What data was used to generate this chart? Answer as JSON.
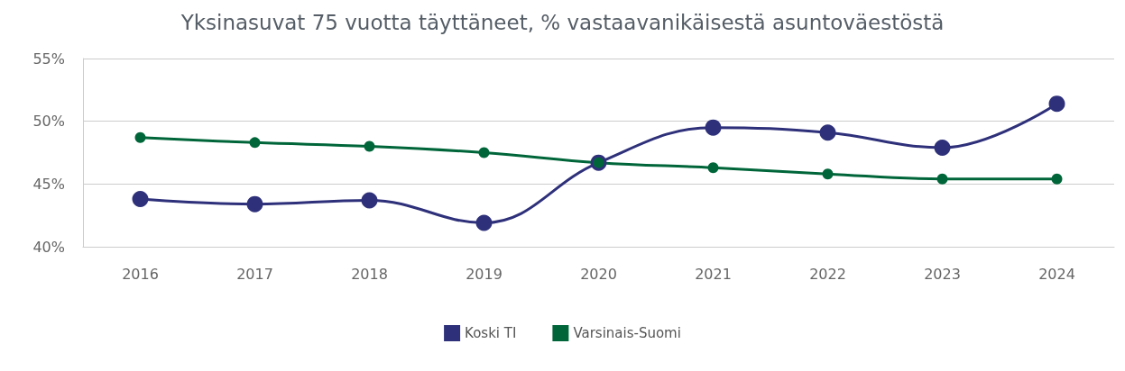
{
  "chart_data": {
    "type": "line",
    "title": "Yksinasuvat 75 vuotta täyttäneet, % vastaavanikäisestä asuntoväestöstä",
    "categories": [
      "2016",
      "2017",
      "2018",
      "2019",
      "2020",
      "2021",
      "2022",
      "2023",
      "2024"
    ],
    "series": [
      {
        "name": "Koski TI",
        "color": "#2e307a",
        "values": [
          43.8,
          43.4,
          43.7,
          41.9,
          46.7,
          49.5,
          49.1,
          47.9,
          51.4
        ]
      },
      {
        "name": "Varsinais-Suomi",
        "color": "#00663a",
        "values": [
          48.7,
          48.3,
          48.0,
          47.5,
          46.7,
          46.3,
          45.8,
          45.4,
          45.4
        ]
      }
    ],
    "ylim": [
      40,
      55
    ],
    "yticks": [
      {
        "value": 40,
        "label": "40%"
      },
      {
        "value": 45,
        "label": "45%"
      },
      {
        "value": 50,
        "label": "50%"
      },
      {
        "value": 55,
        "label": "55%"
      }
    ],
    "grid": "y",
    "legend": "bottom",
    "marker": "circle",
    "line_style": "solid"
  }
}
